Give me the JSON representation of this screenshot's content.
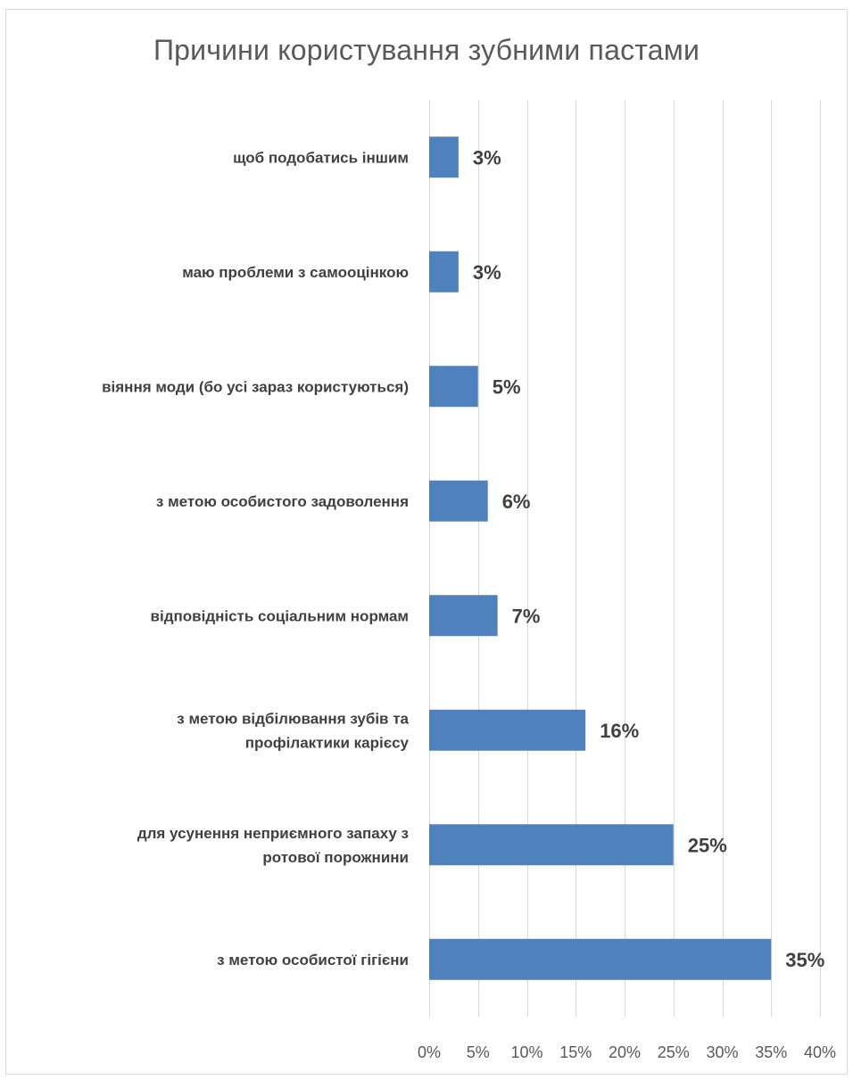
{
  "chart_data": {
    "type": "bar",
    "orientation": "horizontal",
    "title": "Причини користування зубними пастами",
    "categories": [
      [
        "щоб подобатись іншим"
      ],
      [
        "маю проблеми з самооцінкою"
      ],
      [
        "віяння моди (бо усі зараз користуються)"
      ],
      [
        "з метою особистого задоволення"
      ],
      [
        "відповідність соціальним нормам"
      ],
      [
        "з метою відбілювання зубів та",
        "профілактики карієсу"
      ],
      [
        "для усунення неприємного запаху з",
        "ротової порожнини"
      ],
      [
        "з метою особистої гігієни"
      ]
    ],
    "values": [
      3,
      3,
      5,
      6,
      7,
      16,
      25,
      35
    ],
    "value_labels": [
      "3%",
      "3%",
      "5%",
      "6%",
      "7%",
      "16%",
      "25%",
      "35%"
    ],
    "xlim": [
      0,
      40
    ],
    "x_ticks": [
      0,
      5,
      10,
      15,
      20,
      25,
      30,
      35,
      40
    ],
    "x_tick_labels": [
      "0%",
      "5%",
      "10%",
      "15%",
      "20%",
      "25%",
      "30%",
      "35%",
      "40%"
    ],
    "grid": "vertical",
    "legend": "none",
    "bar_color": "#4f81bd",
    "grid_color": "#d9d9d9"
  }
}
